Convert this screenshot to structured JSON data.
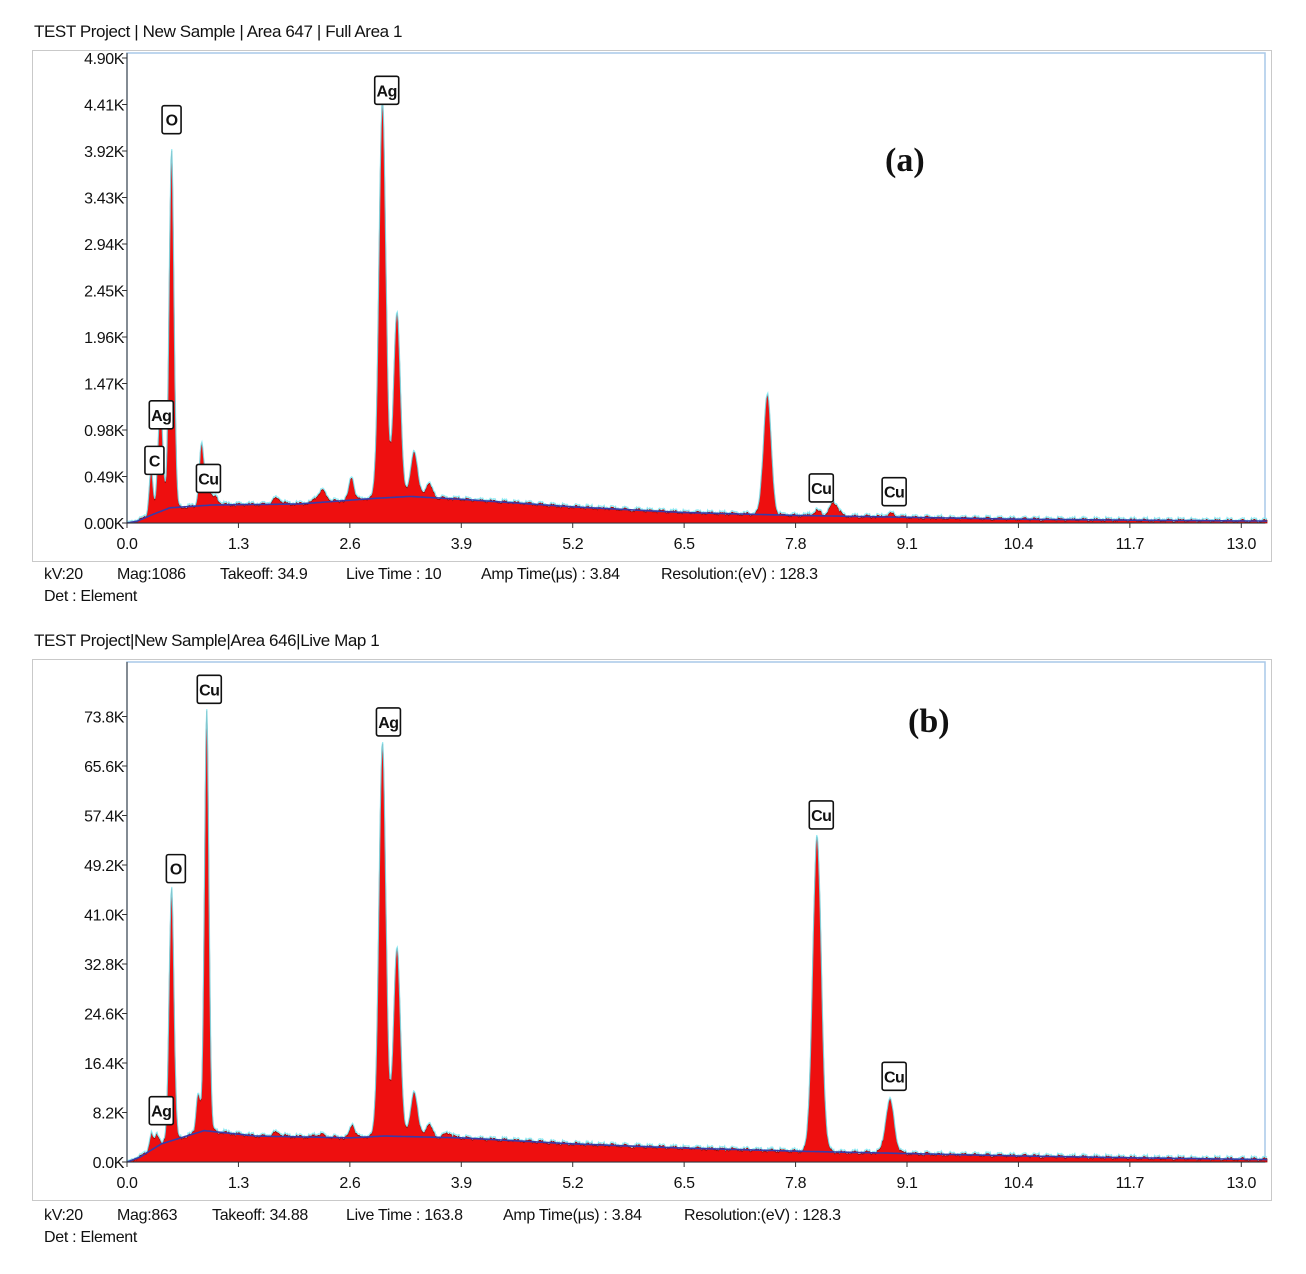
{
  "panels": [
    {
      "title": "TEST Project | New Sample | Area 647 | Full Area 1",
      "panel_label": "(a)",
      "meta": {
        "kv": "kV:20",
        "mag": "Mag:1086",
        "takeoff": "Takeoff: 34.9",
        "live_time": "Live Time : 10",
        "amp_time": "Amp Time(µs) : 3.84",
        "resolution": "Resolution:(eV) : 128.3",
        "det": "Det : Element"
      }
    },
    {
      "title": "TEST Project|New Sample|Area 646|Live Map 1",
      "panel_label": "(b)",
      "meta": {
        "kv": "kV:20",
        "mag": "Mag:863",
        "takeoff": "Takeoff: 34.88",
        "live_time": "Live Time : 163.8",
        "amp_time": "Amp Time(µs) : 3.84",
        "resolution": "Resolution:(eV) : 128.3",
        "det": "Det : Element"
      }
    }
  ],
  "colors": {
    "spectrum_fill": "#ee0f0f",
    "spectrum_edge": "#8a0a0a",
    "fit_line": "#7fe8f2",
    "background_line": "#3a3aa8",
    "frame_border": "#a8c8e8",
    "label_text": "#111111"
  },
  "chart_data": [
    {
      "type": "area",
      "xlim": [
        0.0,
        13.3
      ],
      "ylim": [
        0,
        4900
      ],
      "x_ticks": [
        "0.0",
        "1.3",
        "2.6",
        "3.9",
        "5.2",
        "6.5",
        "7.8",
        "9.1",
        "10.4",
        "11.7",
        "13.0"
      ],
      "x_tick_values": [
        0.0,
        1.3,
        2.6,
        3.9,
        5.2,
        6.5,
        7.8,
        9.1,
        10.4,
        11.7,
        13.0
      ],
      "y_ticks": [
        "0.00K",
        "0.49K",
        "0.98K",
        "1.47K",
        "1.96K",
        "2.45K",
        "2.94K",
        "3.43K",
        "3.92K",
        "4.41K",
        "4.90K"
      ],
      "y_tick_values": [
        0,
        490,
        980,
        1470,
        1960,
        2450,
        2940,
        3430,
        3920,
        4410,
        4900
      ],
      "background": [
        [
          0.0,
          0
        ],
        [
          0.12,
          20
        ],
        [
          0.3,
          90
        ],
        [
          0.5,
          160
        ],
        [
          1.0,
          190
        ],
        [
          2.0,
          200
        ],
        [
          2.9,
          260
        ],
        [
          3.3,
          280
        ],
        [
          3.9,
          250
        ],
        [
          5.2,
          170
        ],
        [
          6.5,
          110
        ],
        [
          7.8,
          80
        ],
        [
          9.1,
          60
        ],
        [
          10.4,
          40
        ],
        [
          11.7,
          30
        ],
        [
          13.3,
          20
        ]
      ],
      "peaks": [
        {
          "x": 0.28,
          "h": 480,
          "w": 0.022
        },
        {
          "x": 0.39,
          "h": 1150,
          "w": 0.028
        },
        {
          "x": 0.52,
          "h": 3780,
          "w": 0.028
        },
        {
          "x": 0.87,
          "h": 640,
          "w": 0.026
        },
        {
          "x": 0.94,
          "h": 300,
          "w": 0.026
        },
        {
          "x": 1.03,
          "h": 80,
          "w": 0.04
        },
        {
          "x": 1.75,
          "h": 60,
          "w": 0.05
        },
        {
          "x": 2.25,
          "h": 80,
          "w": 0.05
        },
        {
          "x": 2.3,
          "h": 60,
          "w": 0.04
        },
        {
          "x": 2.62,
          "h": 240,
          "w": 0.03
        },
        {
          "x": 2.98,
          "h": 4180,
          "w": 0.04
        },
        {
          "x": 3.15,
          "h": 1930,
          "w": 0.04
        },
        {
          "x": 3.35,
          "h": 480,
          "w": 0.04
        },
        {
          "x": 3.52,
          "h": 140,
          "w": 0.04
        },
        {
          "x": 7.47,
          "h": 1270,
          "w": 0.045
        },
        {
          "x": 8.05,
          "h": 50,
          "w": 0.045
        },
        {
          "x": 8.25,
          "h": 140,
          "w": 0.05
        },
        {
          "x": 8.91,
          "h": 30,
          "w": 0.05
        }
      ],
      "labels": [
        {
          "text": "O",
          "x": 0.52,
          "y": 4250
        },
        {
          "text": "Ag",
          "x": 0.4,
          "y": 1140
        },
        {
          "text": "C",
          "x": 0.32,
          "y": 660
        },
        {
          "text": "Cu",
          "x": 0.95,
          "y": 470
        },
        {
          "text": "Ag",
          "x": 3.03,
          "y": 4560
        },
        {
          "text": "Cu",
          "x": 8.1,
          "y": 370
        },
        {
          "text": "Cu",
          "x": 8.95,
          "y": 330
        }
      ]
    },
    {
      "type": "area",
      "xlim": [
        0.0,
        13.3
      ],
      "ylim": [
        0,
        82000
      ],
      "x_ticks": [
        "0.0",
        "1.3",
        "2.6",
        "3.9",
        "5.2",
        "6.5",
        "7.8",
        "9.1",
        "10.4",
        "11.7",
        "13.0"
      ],
      "x_tick_values": [
        0.0,
        1.3,
        2.6,
        3.9,
        5.2,
        6.5,
        7.8,
        9.1,
        10.4,
        11.7,
        13.0
      ],
      "y_ticks": [
        "0.0K",
        "8.2K",
        "16.4K",
        "24.6K",
        "32.8K",
        "41.0K",
        "49.2K",
        "57.4K",
        "65.6K",
        "73.8K"
      ],
      "y_tick_values": [
        0,
        8200,
        16400,
        24600,
        32800,
        41000,
        49200,
        57400,
        65600,
        73800
      ],
      "background": [
        [
          0.0,
          0
        ],
        [
          0.15,
          800
        ],
        [
          0.4,
          3000
        ],
        [
          0.9,
          5200
        ],
        [
          1.5,
          4300
        ],
        [
          2.6,
          4000
        ],
        [
          3.0,
          4300
        ],
        [
          3.9,
          4000
        ],
        [
          5.2,
          3000
        ],
        [
          6.5,
          2300
        ],
        [
          7.8,
          1800
        ],
        [
          9.1,
          1400
        ],
        [
          10.4,
          1000
        ],
        [
          11.7,
          700
        ],
        [
          13.3,
          400
        ]
      ],
      "peaks": [
        {
          "x": 0.28,
          "h": 2500,
          "w": 0.022
        },
        {
          "x": 0.35,
          "h": 1800,
          "w": 0.028
        },
        {
          "x": 0.52,
          "h": 42000,
          "w": 0.028
        },
        {
          "x": 0.83,
          "h": 6500,
          "w": 0.024
        },
        {
          "x": 0.93,
          "h": 70000,
          "w": 0.026
        },
        {
          "x": 1.75,
          "h": 600,
          "w": 0.05
        },
        {
          "x": 2.25,
          "h": 500,
          "w": 0.05
        },
        {
          "x": 2.63,
          "h": 2200,
          "w": 0.03
        },
        {
          "x": 2.98,
          "h": 65000,
          "w": 0.04
        },
        {
          "x": 3.15,
          "h": 31000,
          "w": 0.04
        },
        {
          "x": 3.35,
          "h": 7500,
          "w": 0.04
        },
        {
          "x": 3.52,
          "h": 2000,
          "w": 0.04
        },
        {
          "x": 3.75,
          "h": 800,
          "w": 0.04
        },
        {
          "x": 8.05,
          "h": 52000,
          "w": 0.05
        },
        {
          "x": 8.9,
          "h": 8700,
          "w": 0.05
        }
      ],
      "labels": [
        {
          "text": "Cu",
          "x": 0.96,
          "y": 78300
        },
        {
          "text": "O",
          "x": 0.57,
          "y": 48600
        },
        {
          "text": "Ag",
          "x": 0.4,
          "y": 8500
        },
        {
          "text": "Ag",
          "x": 3.05,
          "y": 72900
        },
        {
          "text": "Cu",
          "x": 8.1,
          "y": 57500
        },
        {
          "text": "Cu",
          "x": 8.95,
          "y": 14200
        }
      ]
    }
  ]
}
